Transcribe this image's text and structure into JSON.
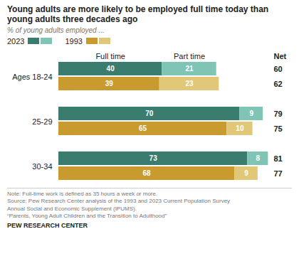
{
  "chart_data": {
    "type": "bar",
    "orientation": "horizontal",
    "stacked": true,
    "data_labels": true,
    "tick_labels": "y",
    "title": "Young adults are more likely to be employed full time today than young adults three decades ago",
    "subtitle": "% of young adults employed ...",
    "categories": [
      "Ages 18-24",
      "25-29",
      "30-34"
    ],
    "xlim": [
      0,
      82
    ],
    "net_label": "Net",
    "series": [
      {
        "name": "2023",
        "segments": [
          {
            "name": "Full time",
            "color": "#3a7d6e",
            "values": [
              40,
              70,
              73
            ]
          },
          {
            "name": "Part time",
            "color": "#7fc4b5",
            "values": [
              21,
              9,
              8
            ]
          }
        ],
        "net": [
          60,
          79,
          81
        ]
      },
      {
        "name": "1993",
        "segments": [
          {
            "name": "Full time",
            "color": "#c99a2e",
            "values": [
              39,
              65,
              68
            ]
          },
          {
            "name": "Part time",
            "color": "#e0c878",
            "values": [
              23,
              10,
              9
            ]
          }
        ],
        "net": [
          62,
          75,
          77
        ]
      }
    ],
    "note": "Note: Full-time work is defined as 35 hours a week or more.\nSource: Pew Research Center analysis of the 1993 and 2023 Current Population Survey\nAnnual Social and Economic Supplement (IPUMS).\n“Parents, Young Adult Children and the Transition to Adulthood”",
    "footer": "PEW RESEARCH CENTER"
  }
}
